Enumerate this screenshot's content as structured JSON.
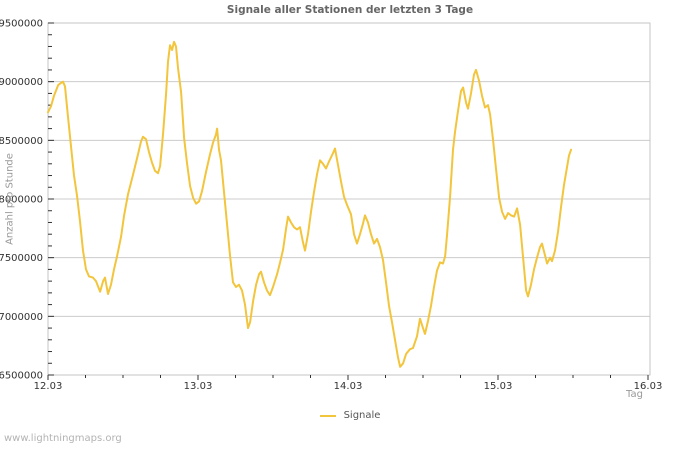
{
  "title": "Signale aller Stationen der letzten 3 Tage",
  "footer": {
    "text": "www.lightningmaps.org"
  },
  "legend": {
    "items": [
      {
        "label": "Signale",
        "color": "#f2c53d"
      }
    ]
  },
  "colors": {
    "line": "#f2c53d",
    "grid": "#cccccc",
    "border": "#c6c6c6",
    "tick": "#333333",
    "tick_text": "#333333",
    "title_text": "#666666",
    "muted_text": "#999999",
    "footer_text": "#b3b3b3"
  },
  "chart_data": {
    "type": "line",
    "title": "Signale aller Stationen der letzten 3 Tage",
    "xlabel": "Tag",
    "ylabel": "Anzahl pro Stunde",
    "grid": "horizontal-only",
    "legend_position": "bottom-center",
    "x_unit": "days since 12.03",
    "xlim": [
      0,
      4.0133
    ],
    "ylim": [
      6500000,
      9500000
    ],
    "x_ticks": [
      {
        "value": 0,
        "label": "12.03"
      },
      {
        "value": 1,
        "label": "13.03"
      },
      {
        "value": 2,
        "label": "14.03"
      },
      {
        "value": 3,
        "label": "15.03"
      },
      {
        "value": 4,
        "label": "16.03"
      }
    ],
    "x_minor_step": 0.25,
    "y_ticks": [
      {
        "value": 6500000,
        "label": "6500000"
      },
      {
        "value": 7000000,
        "label": "7000000"
      },
      {
        "value": 7500000,
        "label": "7500000"
      },
      {
        "value": 8000000,
        "label": "8000000"
      },
      {
        "value": 8500000,
        "label": "8500000"
      },
      {
        "value": 9000000,
        "label": "9000000"
      },
      {
        "value": 9500000,
        "label": "9500000"
      }
    ],
    "y_minor_step": 100000,
    "series": [
      {
        "name": "Signale",
        "color": "#f2c53d",
        "points": [
          [
            0.0,
            8740000
          ],
          [
            0.02,
            8790000
          ],
          [
            0.04,
            8880000
          ],
          [
            0.067,
            8970000
          ],
          [
            0.087,
            8990000
          ],
          [
            0.1,
            9000000
          ],
          [
            0.113,
            8960000
          ],
          [
            0.133,
            8700000
          ],
          [
            0.153,
            8450000
          ],
          [
            0.173,
            8200000
          ],
          [
            0.193,
            8030000
          ],
          [
            0.213,
            7810000
          ],
          [
            0.233,
            7560000
          ],
          [
            0.253,
            7400000
          ],
          [
            0.273,
            7340000
          ],
          [
            0.3,
            7330000
          ],
          [
            0.32,
            7300000
          ],
          [
            0.347,
            7210000
          ],
          [
            0.367,
            7300000
          ],
          [
            0.38,
            7330000
          ],
          [
            0.4,
            7190000
          ],
          [
            0.42,
            7270000
          ],
          [
            0.44,
            7400000
          ],
          [
            0.46,
            7510000
          ],
          [
            0.487,
            7680000
          ],
          [
            0.507,
            7860000
          ],
          [
            0.533,
            8040000
          ],
          [
            0.553,
            8140000
          ],
          [
            0.573,
            8240000
          ],
          [
            0.6,
            8380000
          ],
          [
            0.62,
            8490000
          ],
          [
            0.633,
            8530000
          ],
          [
            0.653,
            8510000
          ],
          [
            0.673,
            8400000
          ],
          [
            0.693,
            8310000
          ],
          [
            0.713,
            8240000
          ],
          [
            0.733,
            8220000
          ],
          [
            0.747,
            8280000
          ],
          [
            0.767,
            8560000
          ],
          [
            0.787,
            8900000
          ],
          [
            0.8,
            9170000
          ],
          [
            0.813,
            9310000
          ],
          [
            0.827,
            9270000
          ],
          [
            0.84,
            9340000
          ],
          [
            0.853,
            9300000
          ],
          [
            0.867,
            9110000
          ],
          [
            0.887,
            8910000
          ],
          [
            0.907,
            8520000
          ],
          [
            0.927,
            8300000
          ],
          [
            0.947,
            8110000
          ],
          [
            0.967,
            8010000
          ],
          [
            0.987,
            7960000
          ],
          [
            1.007,
            7980000
          ],
          [
            1.027,
            8070000
          ],
          [
            1.053,
            8230000
          ],
          [
            1.08,
            8380000
          ],
          [
            1.1,
            8480000
          ],
          [
            1.12,
            8550000
          ],
          [
            1.127,
            8600000
          ],
          [
            1.14,
            8420000
          ],
          [
            1.153,
            8330000
          ],
          [
            1.173,
            8060000
          ],
          [
            1.193,
            7790000
          ],
          [
            1.213,
            7520000
          ],
          [
            1.233,
            7290000
          ],
          [
            1.253,
            7250000
          ],
          [
            1.273,
            7270000
          ],
          [
            1.293,
            7220000
          ],
          [
            1.313,
            7100000
          ],
          [
            1.333,
            6900000
          ],
          [
            1.347,
            6950000
          ],
          [
            1.367,
            7130000
          ],
          [
            1.387,
            7270000
          ],
          [
            1.407,
            7360000
          ],
          [
            1.42,
            7380000
          ],
          [
            1.44,
            7290000
          ],
          [
            1.46,
            7220000
          ],
          [
            1.48,
            7180000
          ],
          [
            1.5,
            7250000
          ],
          [
            1.527,
            7360000
          ],
          [
            1.547,
            7460000
          ],
          [
            1.567,
            7570000
          ],
          [
            1.587,
            7750000
          ],
          [
            1.6,
            7850000
          ],
          [
            1.62,
            7800000
          ],
          [
            1.64,
            7760000
          ],
          [
            1.66,
            7740000
          ],
          [
            1.68,
            7760000
          ],
          [
            1.7,
            7630000
          ],
          [
            1.713,
            7560000
          ],
          [
            1.733,
            7700000
          ],
          [
            1.753,
            7890000
          ],
          [
            1.773,
            8060000
          ],
          [
            1.793,
            8210000
          ],
          [
            1.813,
            8330000
          ],
          [
            1.833,
            8300000
          ],
          [
            1.853,
            8260000
          ],
          [
            1.873,
            8320000
          ],
          [
            1.9,
            8390000
          ],
          [
            1.913,
            8430000
          ],
          [
            1.933,
            8290000
          ],
          [
            1.953,
            8150000
          ],
          [
            1.973,
            8020000
          ],
          [
            1.993,
            7950000
          ],
          [
            2.02,
            7870000
          ],
          [
            2.04,
            7700000
          ],
          [
            2.06,
            7620000
          ],
          [
            2.08,
            7700000
          ],
          [
            2.1,
            7790000
          ],
          [
            2.113,
            7860000
          ],
          [
            2.133,
            7800000
          ],
          [
            2.153,
            7700000
          ],
          [
            2.173,
            7620000
          ],
          [
            2.193,
            7660000
          ],
          [
            2.213,
            7590000
          ],
          [
            2.233,
            7480000
          ],
          [
            2.253,
            7290000
          ],
          [
            2.273,
            7090000
          ],
          [
            2.293,
            6950000
          ],
          [
            2.313,
            6800000
          ],
          [
            2.333,
            6650000
          ],
          [
            2.347,
            6570000
          ],
          [
            2.367,
            6600000
          ],
          [
            2.387,
            6680000
          ],
          [
            2.413,
            6720000
          ],
          [
            2.433,
            6730000
          ],
          [
            2.46,
            6830000
          ],
          [
            2.48,
            6980000
          ],
          [
            2.5,
            6900000
          ],
          [
            2.513,
            6850000
          ],
          [
            2.533,
            6960000
          ],
          [
            2.553,
            7090000
          ],
          [
            2.573,
            7250000
          ],
          [
            2.593,
            7390000
          ],
          [
            2.613,
            7460000
          ],
          [
            2.633,
            7450000
          ],
          [
            2.647,
            7510000
          ],
          [
            2.66,
            7690000
          ],
          [
            2.68,
            8010000
          ],
          [
            2.7,
            8420000
          ],
          [
            2.713,
            8570000
          ],
          [
            2.733,
            8750000
          ],
          [
            2.753,
            8920000
          ],
          [
            2.767,
            8950000
          ],
          [
            2.787,
            8820000
          ],
          [
            2.8,
            8770000
          ],
          [
            2.82,
            8900000
          ],
          [
            2.84,
            9060000
          ],
          [
            2.853,
            9100000
          ],
          [
            2.873,
            9010000
          ],
          [
            2.893,
            8880000
          ],
          [
            2.913,
            8780000
          ],
          [
            2.933,
            8800000
          ],
          [
            2.947,
            8720000
          ],
          [
            2.967,
            8500000
          ],
          [
            2.987,
            8250000
          ],
          [
            3.007,
            8010000
          ],
          [
            3.027,
            7890000
          ],
          [
            3.047,
            7830000
          ],
          [
            3.067,
            7880000
          ],
          [
            3.087,
            7860000
          ],
          [
            3.107,
            7850000
          ],
          [
            3.127,
            7920000
          ],
          [
            3.147,
            7780000
          ],
          [
            3.167,
            7500000
          ],
          [
            3.187,
            7220000
          ],
          [
            3.2,
            7170000
          ],
          [
            3.22,
            7270000
          ],
          [
            3.24,
            7400000
          ],
          [
            3.26,
            7500000
          ],
          [
            3.28,
            7590000
          ],
          [
            3.293,
            7620000
          ],
          [
            3.313,
            7520000
          ],
          [
            3.327,
            7450000
          ],
          [
            3.347,
            7500000
          ],
          [
            3.36,
            7470000
          ],
          [
            3.38,
            7560000
          ],
          [
            3.4,
            7720000
          ],
          [
            3.42,
            7930000
          ],
          [
            3.44,
            8120000
          ],
          [
            3.46,
            8270000
          ],
          [
            3.473,
            8370000
          ],
          [
            3.487,
            8420000
          ]
        ]
      }
    ]
  }
}
